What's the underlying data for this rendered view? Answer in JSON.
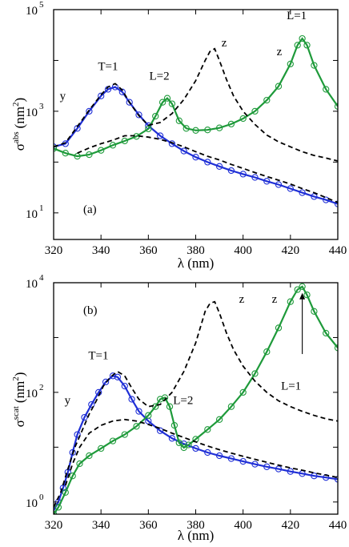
{
  "chart_data": [
    {
      "type": "line",
      "panel_label": "(a)",
      "xlabel": "λ (nm)",
      "ylabel_main": "σ",
      "ylabel_sup": "abs",
      "ylabel_unit": "(nm",
      "ylabel_unit_sup": "2",
      "ylabel_close": ")",
      "xlim": [
        320,
        440
      ],
      "ylim": [
        3,
        100000
      ],
      "yscale": "log",
      "x_ticks": [
        "320",
        "340",
        "360",
        "380",
        "400",
        "420",
        "440"
      ],
      "y_ticks": [
        {
          "base": "10",
          "exp": "5",
          "value": 100000
        },
        {
          "base": "10",
          "exp": "3",
          "value": 1000
        },
        {
          "base": "10",
          "exp": "1",
          "value": 10
        }
      ],
      "annotations": [
        {
          "text": "T=1",
          "x": 346,
          "y": 5200
        },
        {
          "text": "y",
          "x": 334,
          "y": 2600
        },
        {
          "text": "L=2",
          "x": 366,
          "y": 2900
        },
        {
          "text": "z",
          "x": 390,
          "y": 19000
        },
        {
          "text": "z",
          "x": 418,
          "y": 14500
        },
        {
          "text": "L=1",
          "x": 425,
          "y": 48000
        }
      ],
      "series": [
        {
          "color": "#1f2fd6",
          "style": "solid",
          "marker": "circle",
          "x": [
            320,
            325,
            330,
            335,
            340,
            343,
            346,
            349,
            352,
            356,
            360,
            365,
            370,
            375,
            380,
            385,
            390,
            395,
            400,
            405,
            410,
            415,
            420,
            425,
            430,
            435,
            440
          ],
          "y": [
            200,
            230,
            460,
            1000,
            2000,
            2700,
            3000,
            2400,
            1500,
            850,
            520,
            330,
            230,
            165,
            125,
            100,
            82,
            68,
            58,
            50,
            42,
            36,
            30,
            25,
            21,
            18,
            15
          ]
        },
        {
          "color": "#1e9a3a",
          "style": "solid",
          "marker": "circle",
          "x": [
            320,
            325,
            330,
            335,
            340,
            345,
            350,
            355,
            360,
            363,
            366,
            368,
            370,
            373,
            376,
            380,
            385,
            390,
            395,
            400,
            405,
            410,
            415,
            420,
            423,
            425,
            427,
            430,
            435,
            440
          ],
          "y": [
            185,
            150,
            130,
            140,
            170,
            215,
            260,
            320,
            450,
            800,
            1500,
            1800,
            1400,
            650,
            460,
            420,
            430,
            470,
            560,
            720,
            1000,
            1650,
            3100,
            8500,
            20000,
            27000,
            20000,
            8000,
            2700,
            1250
          ]
        },
        {
          "color": "#000000",
          "style": "dashed",
          "marker": "none",
          "x": [
            320,
            325,
            330,
            335,
            340,
            343,
            346,
            349,
            352,
            356,
            360,
            365,
            370,
            375,
            380,
            384,
            386,
            388,
            390,
            393,
            396,
            400,
            405,
            410,
            415,
            420,
            425,
            430,
            435,
            440
          ],
          "y": [
            200,
            240,
            500,
            1050,
            2100,
            3000,
            3500,
            2600,
            1500,
            820,
            530,
            600,
            900,
            1700,
            4000,
            10000,
            15000,
            17000,
            10000,
            4200,
            2000,
            1000,
            550,
            340,
            250,
            200,
            160,
            135,
            120,
            105
          ]
        },
        {
          "color": "#000000",
          "style": "dashed",
          "marker": "none",
          "x": [
            330,
            335,
            340,
            345,
            350,
            355,
            360,
            365,
            370,
            375,
            380,
            385,
            390,
            395,
            400,
            405,
            410,
            415,
            420,
            425,
            430,
            435,
            440
          ],
          "y": [
            150,
            190,
            230,
            270,
            330,
            330,
            310,
            280,
            240,
            200,
            160,
            130,
            110,
            90,
            75,
            62,
            52,
            44,
            37,
            30,
            25,
            20,
            16
          ]
        }
      ]
    },
    {
      "type": "line",
      "panel_label": "(b)",
      "xlabel": "λ (nm)",
      "ylabel_main": "σ",
      "ylabel_sup": "scat",
      "ylabel_unit": "(nm",
      "ylabel_unit_sup": "2",
      "ylabel_close": ")",
      "xlim": [
        320,
        440
      ],
      "ylim": [
        0.6,
        10000
      ],
      "yscale": "log",
      "x_ticks": [
        "320",
        "340",
        "360",
        "380",
        "400",
        "420",
        "440"
      ],
      "y_ticks": [
        {
          "base": "10",
          "exp": "4",
          "value": 10000
        },
        {
          "base": "10",
          "exp": "2",
          "value": 100
        },
        {
          "base": "10",
          "exp": "0",
          "value": 1
        }
      ],
      "annotations": [
        {
          "text": "T=1",
          "x": 345,
          "y": 330
        },
        {
          "text": "y",
          "x": 334,
          "y": 85
        },
        {
          "text": "L=2",
          "x": 372,
          "y": 65
        },
        {
          "text": "z",
          "x": 394,
          "y": 4300
        },
        {
          "text": "z",
          "x": 418,
          "y": 4300
        },
        {
          "text": "L=1",
          "x": 425,
          "y": 220
        }
      ],
      "arrow": {
        "x": 425,
        "y_from": 500,
        "y_to": 6500
      },
      "series": [
        {
          "color": "#1f2fd6",
          "style": "solid",
          "marker": "circle",
          "x": [
            320,
            322,
            324,
            326,
            328,
            330,
            333,
            336,
            339,
            342,
            345,
            347,
            350,
            353,
            356,
            360,
            365,
            370,
            375,
            380,
            385,
            390,
            395,
            400,
            405,
            410,
            415,
            420,
            425,
            430,
            435,
            440
          ],
          "y": [
            0.7,
            1.0,
            1.8,
            3.5,
            8,
            17,
            35,
            60,
            100,
            155,
            200,
            190,
            130,
            75,
            45,
            30,
            20,
            14.5,
            11.5,
            9.5,
            8,
            7,
            6.2,
            5.5,
            4.9,
            4.4,
            4.0,
            3.6,
            3.3,
            3.0,
            2.8,
            2.6
          ]
        },
        {
          "color": "#1e9a3a",
          "style": "solid",
          "marker": "circle",
          "x": [
            320,
            322,
            325,
            328,
            331,
            335,
            340,
            345,
            350,
            355,
            360,
            363,
            365,
            367,
            369,
            371,
            373,
            375,
            377,
            380,
            385,
            390,
            395,
            400,
            405,
            410,
            415,
            420,
            423,
            425,
            427,
            430,
            435,
            440
          ],
          "y": [
            0.6,
            0.8,
            1.5,
            3,
            5,
            7,
            9.5,
            13,
            17,
            24,
            38,
            55,
            75,
            80,
            55,
            25,
            12,
            9.8,
            11,
            14,
            21,
            32,
            55,
            100,
            220,
            550,
            1500,
            4500,
            7500,
            8500,
            6000,
            3000,
            1200,
            650
          ]
        },
        {
          "color": "#000000",
          "style": "dashed",
          "marker": "none",
          "x": [
            320,
            323,
            326,
            329,
            332,
            335,
            338,
            341,
            344,
            347,
            350,
            353,
            356,
            360,
            365,
            370,
            375,
            380,
            384,
            386,
            388,
            390,
            393,
            396,
            400,
            405,
            410,
            415,
            420,
            425,
            430,
            435,
            440
          ],
          "y": [
            0.8,
            1.5,
            4,
            10,
            20,
            40,
            70,
            130,
            190,
            240,
            200,
            120,
            75,
            55,
            60,
            100,
            240,
            800,
            3000,
            4200,
            4500,
            2800,
            1200,
            600,
            300,
            160,
            100,
            70,
            55,
            45,
            38,
            33,
            30
          ]
        },
        {
          "color": "#000000",
          "style": "dashed",
          "marker": "none",
          "x": [
            325,
            328,
            331,
            335,
            340,
            345,
            350,
            355,
            360,
            365,
            370,
            375,
            380,
            385,
            390,
            395,
            400,
            405,
            410,
            415,
            420,
            425,
            430,
            435,
            440
          ],
          "y": [
            2,
            5,
            10,
            18,
            25,
            30,
            32,
            30,
            26,
            22,
            18,
            15,
            12.5,
            10.5,
            9,
            7.8,
            6.8,
            6,
            5.3,
            4.7,
            4.2,
            3.8,
            3.4,
            3.1,
            2.8
          ]
        }
      ]
    }
  ]
}
